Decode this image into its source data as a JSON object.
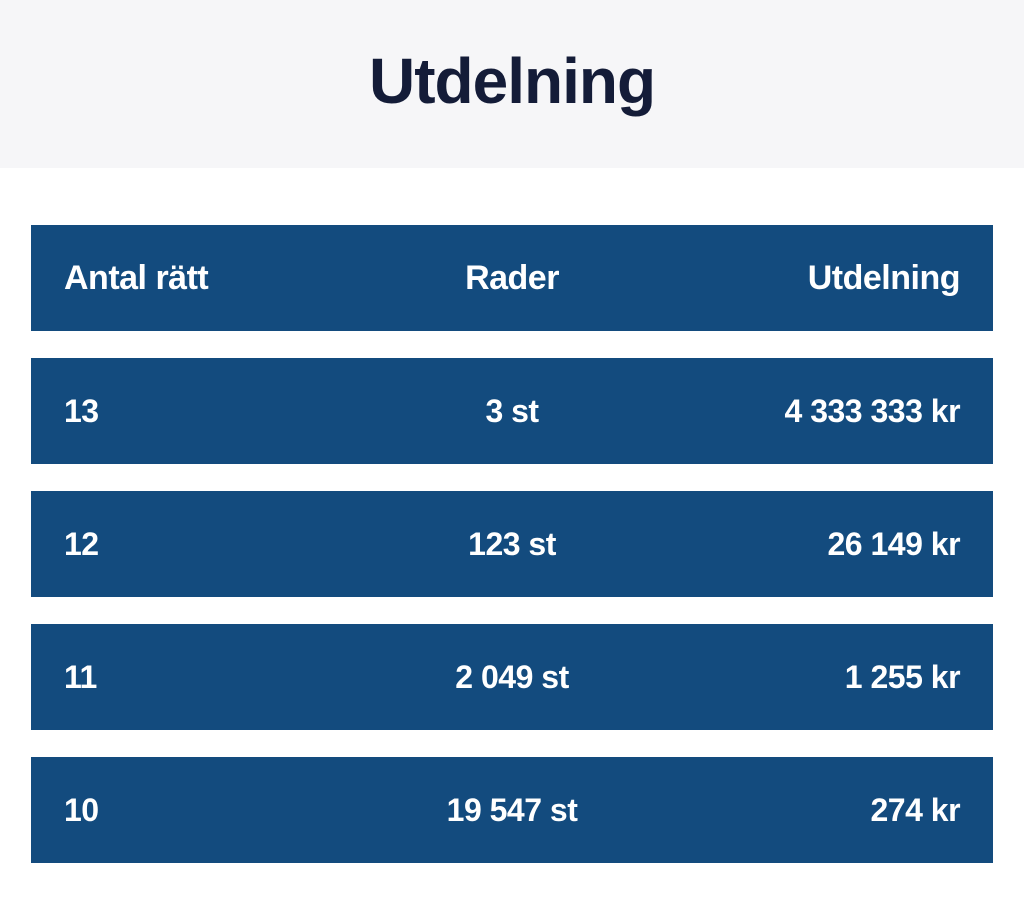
{
  "page": {
    "title": "Utdelning"
  },
  "colors": {
    "row_background": "#134b7e",
    "band_background": "#f6f6f8",
    "title_text": "#141c38",
    "row_text": "#ffffff",
    "page_background": "#ffffff"
  },
  "table": {
    "headers": {
      "correct": "Antal rätt",
      "rows": "Rader",
      "payout": "Utdelning"
    },
    "rows": [
      {
        "correct": "13",
        "rows": "3 st",
        "payout": "4 333 333 kr"
      },
      {
        "correct": "12",
        "rows": "123 st",
        "payout": "26 149 kr"
      },
      {
        "correct": "11",
        "rows": "2 049 st",
        "payout": "1 255 kr"
      },
      {
        "correct": "10",
        "rows": "19 547 st",
        "payout": "274 kr"
      }
    ]
  }
}
